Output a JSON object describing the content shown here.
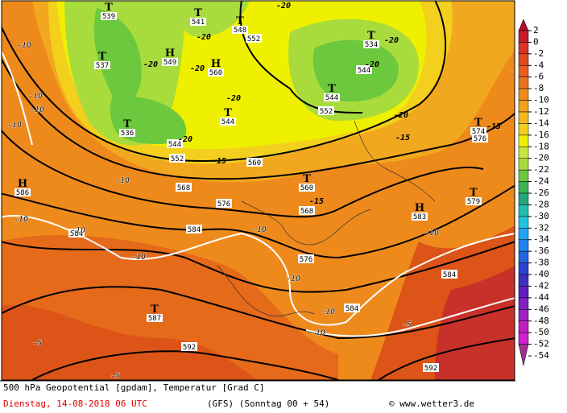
{
  "footer": {
    "title": "500 hPa Geopotential [gpdam], Temperatur [Grad C]",
    "date": "Dienstag, 14-08-2018  06 UTC",
    "model": "(GFS)  (Sonntag 00 + 54)",
    "source": "© www.wetter3.de"
  },
  "map": {
    "centers": [
      {
        "symbol": "T",
        "value": "539"
      },
      {
        "symbol": "T",
        "value": "541"
      },
      {
        "symbol": "T",
        "value": "548"
      },
      {
        "symbol": "T",
        "value": "534"
      },
      {
        "symbol": "H",
        "value": "549"
      },
      {
        "symbol": "H",
        "value": "560"
      },
      {
        "symbol": "T",
        "value": "537"
      },
      {
        "symbol": "T",
        "value": "544"
      },
      {
        "symbol": "T",
        "value": "544"
      },
      {
        "symbol": "T",
        "value": "536"
      },
      {
        "symbol": "T",
        "value": "574"
      },
      {
        "symbol": "H",
        "value": "586"
      },
      {
        "symbol": "T",
        "value": "560"
      },
      {
        "symbol": "T",
        "value": "579"
      },
      {
        "symbol": "H",
        "value": "583"
      },
      {
        "symbol": "T",
        "value": "587"
      }
    ],
    "geopotential_labels": [
      "552",
      "544",
      "552",
      "544",
      "552",
      "560",
      "568",
      "576",
      "568",
      "584",
      "584",
      "576",
      "584",
      "584",
      "592",
      "592",
      "576"
    ],
    "temperature_labels": [
      "-20",
      "-20",
      "-20",
      "-20",
      "-20",
      "-20",
      "-20",
      "-20",
      "-20",
      "-15",
      "-15",
      "-15",
      "-15",
      "-10",
      "-10",
      "-10",
      "-10",
      "-10",
      "-10",
      "-10",
      "-10",
      "-10",
      "-10",
      "-10",
      "-10",
      "-10",
      "-5",
      "-5",
      "-5"
    ]
  },
  "legend": [
    {
      "label": "2",
      "color": "#b01030"
    },
    {
      "label": "0",
      "color": "#c81c2c"
    },
    {
      "label": "-2",
      "color": "#d83424"
    },
    {
      "label": "-4",
      "color": "#e04a20"
    },
    {
      "label": "-6",
      "color": "#e65e1e"
    },
    {
      "label": "-8",
      "color": "#ea721e"
    },
    {
      "label": "-10",
      "color": "#ee8a1c"
    },
    {
      "label": "-12",
      "color": "#f2a01e"
    },
    {
      "label": "-14",
      "color": "#f2b81e"
    },
    {
      "label": "-16",
      "color": "#f3cf1e"
    },
    {
      "label": "-18",
      "color": "#eff000"
    },
    {
      "label": "-20",
      "color": "#c8e83c"
    },
    {
      "label": "-22",
      "color": "#a8dc3c"
    },
    {
      "label": "-24",
      "color": "#6cc83c"
    },
    {
      "label": "-26",
      "color": "#3cb450"
    },
    {
      "label": "-28",
      "color": "#20a878"
    },
    {
      "label": "-30",
      "color": "#20c0b0"
    },
    {
      "label": "-32",
      "color": "#20c4e0"
    },
    {
      "label": "-34",
      "color": "#20a4f0"
    },
    {
      "label": "-36",
      "color": "#2084f0"
    },
    {
      "label": "-38",
      "color": "#2064e0"
    },
    {
      "label": "-40",
      "color": "#2844d0"
    },
    {
      "label": "-42",
      "color": "#4030c0"
    },
    {
      "label": "-44",
      "color": "#6020c0"
    },
    {
      "label": "-46",
      "color": "#8020c0"
    },
    {
      "label": "-48",
      "color": "#a020c0"
    },
    {
      "label": "-50",
      "color": "#c020c0"
    },
    {
      "label": "-52",
      "color": "#d020d0"
    },
    {
      "label": "-54",
      "color": "#a03090"
    }
  ]
}
